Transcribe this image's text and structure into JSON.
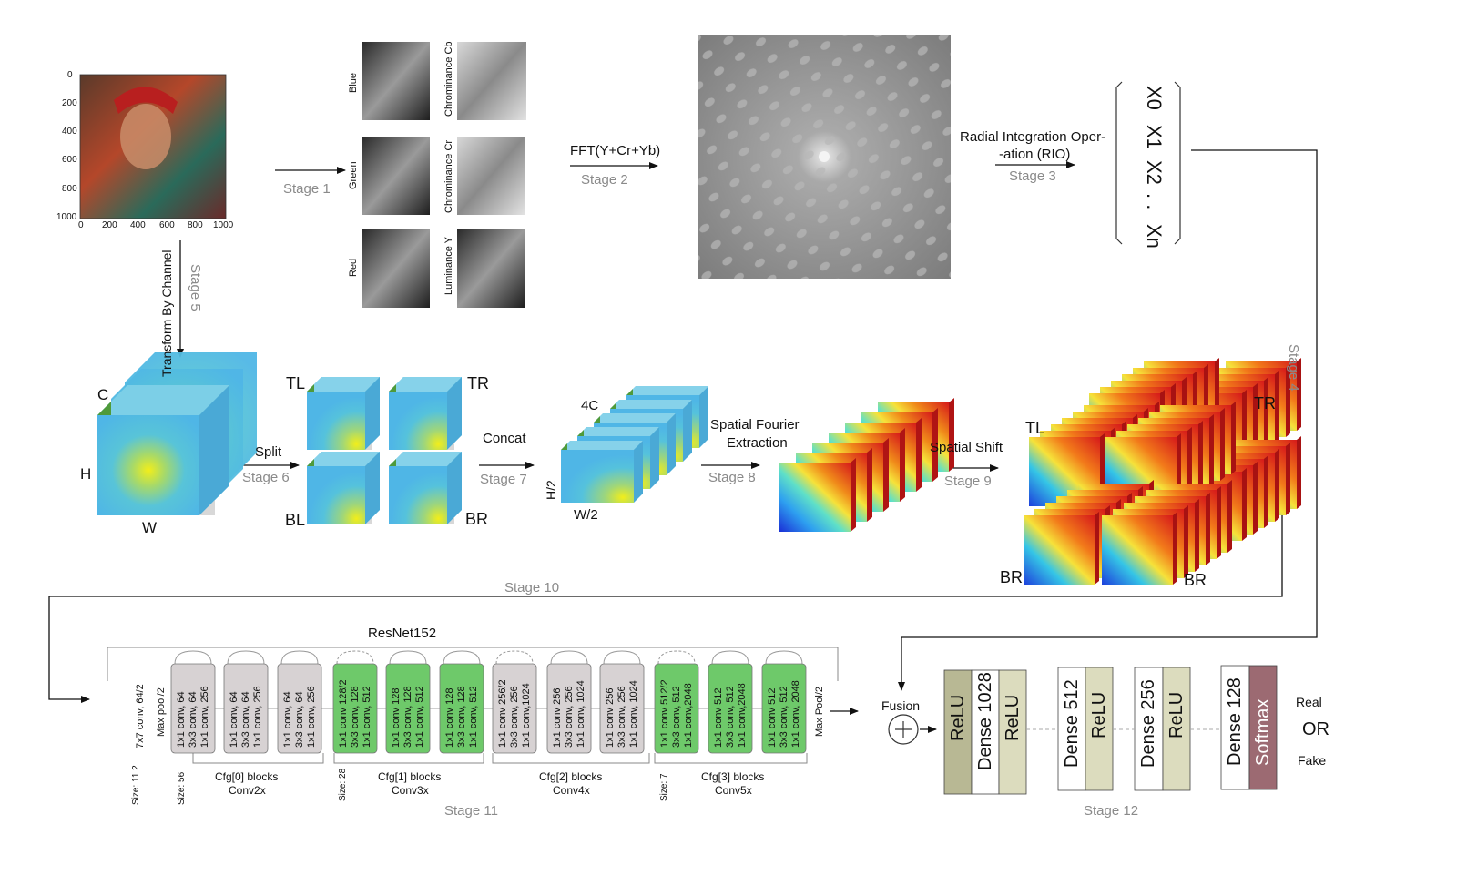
{
  "stages": {
    "s1": "Stage 1",
    "s2": "Stage 2",
    "s3": "Stage 3",
    "s4": "Stage 4",
    "s5": "Stage 5",
    "s6": "Stage 6",
    "s7": "Stage 7",
    "s8": "Stage 8",
    "s9": "Stage 9",
    "s10": "Stage 10",
    "s11": "Stage 11",
    "s12": "Stage 12"
  },
  "input_image": {
    "y_ticks": [
      "0",
      "200",
      "400",
      "600",
      "800",
      "1000"
    ],
    "x_ticks": [
      "0",
      "200",
      "400",
      "600",
      "800",
      "1000"
    ]
  },
  "channels": {
    "blue": "Blue",
    "green": "Green",
    "red": "Red",
    "cb": "Chrominance Cb",
    "cr": "Chrominance Cr",
    "y": "Luminance Y"
  },
  "fft_label": "FFT(Y+Cr+Yb)",
  "rio_label_1": "Radial Integration Oper-",
  "rio_label_2": "-ation (RIO)",
  "vector": {
    "items": [
      "X0",
      "X1",
      "X2",
      ". .",
      "Xn"
    ]
  },
  "transform_label": "Transform By Channel",
  "cube": {
    "c": "C",
    "h": "H",
    "w": "W"
  },
  "split_label": "Split",
  "quads": {
    "tl": "TL",
    "tr": "TR",
    "bl": "BL",
    "br": "BR"
  },
  "concat_label": "Concat",
  "stack": {
    "c4": "4C",
    "h2": "H/2",
    "w2": "W/2"
  },
  "sfe_label_1": "Spatial  Fourier",
  "sfe_label_2": "Extraction",
  "shift_label": "Spatial Shift",
  "shifted": {
    "tl": "TL",
    "tr": "TR",
    "br1": "BR",
    "br2": "BR"
  },
  "resnet": {
    "title": "ResNet152",
    "first": [
      "7x7 conv, 64/2",
      "Max pool/2"
    ],
    "last": "Max Pool/2",
    "blocks": [
      {
        "lines": [
          "1x1 conv, 64",
          "3x3 conv, 64",
          "1x1 conv, 256"
        ],
        "color": "#d7d2d3"
      },
      {
        "lines": [
          "1x1 conv, 64",
          "3x3 conv, 64",
          "1x1 conv, 256"
        ],
        "color": "#d7d2d3"
      },
      {
        "lines": [
          "1x1 conv, 64",
          "3x3 conv, 64",
          "1x1 conv, 256"
        ],
        "color": "#d7d2d3"
      },
      {
        "lines": [
          "1x1 conv 128/2",
          "3x3 conv, 128",
          "1x1 conv, 512"
        ],
        "color": "#6ec96a"
      },
      {
        "lines": [
          "1x1 conv 128",
          "3x3 conv, 128",
          "1x1 conv, 512"
        ],
        "color": "#6ec96a"
      },
      {
        "lines": [
          "1x1 conv 128",
          "3x3 conv, 128",
          "1x1 conv, 512"
        ],
        "color": "#6ec96a"
      },
      {
        "lines": [
          "1x1 conv 256/2",
          "3x3 conv, 256",
          "1x1 conv,1024"
        ],
        "color": "#d7d2d3"
      },
      {
        "lines": [
          "1x1 conv 256",
          "3x3 conv, 256",
          "1x1 conv, 1024"
        ],
        "color": "#d7d2d3"
      },
      {
        "lines": [
          "1x1 conv 256",
          "3x3 conv, 256",
          "1x1 conv, 1024"
        ],
        "color": "#d7d2d3"
      },
      {
        "lines": [
          "1x1 conv 512/2",
          "3x3 conv, 512",
          "1x1 conv,2048"
        ],
        "color": "#6ec96a"
      },
      {
        "lines": [
          "1x1 conv 512",
          "3x3 conv, 512",
          "1x1 conv,2048"
        ],
        "color": "#6ec96a"
      },
      {
        "lines": [
          "1x1 conv 512",
          "3x3 conv, 512",
          "1x1 conv, 2048"
        ],
        "color": "#6ec96a"
      }
    ],
    "sizes": [
      "Size: 11\n2",
      "Size: 56",
      "Size: 28",
      "Size: 7"
    ],
    "groups": [
      {
        "line1": "Cfg[0] blocks",
        "line2": "Conv2x"
      },
      {
        "line1": "Cfg[1] blocks",
        "line2": "Conv3x"
      },
      {
        "line1": "Cfg[2] blocks",
        "line2": "Conv4x"
      },
      {
        "line1": "Cfg[3] blocks",
        "line2": "Conv5x"
      }
    ]
  },
  "fusion_label": "Fusion",
  "head": {
    "layers": [
      {
        "label": "ReLU",
        "color": "#b8b894"
      },
      {
        "label": "Dense 1028",
        "color": "#ffffff"
      },
      {
        "label": "ReLU",
        "color": "#dcdcbe"
      },
      {
        "label": "Dense 512",
        "color": "#ffffff"
      },
      {
        "label": "ReLU",
        "color": "#dcdcbe"
      },
      {
        "label": "Dense 256",
        "color": "#ffffff"
      },
      {
        "label": "ReLU",
        "color": "#dcdcbe"
      },
      {
        "label": "Dense 128",
        "color": "#ffffff"
      },
      {
        "label": "Softmax",
        "color": "#9c6a72"
      }
    ],
    "real": "Real",
    "or": "OR",
    "fake": "Fake"
  }
}
